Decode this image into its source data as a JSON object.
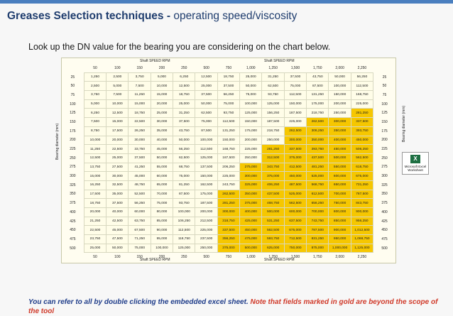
{
  "title": {
    "bold": "Greases Selection techniques -",
    "rest": " operating speed/viscosity"
  },
  "subtitle": "Look up the DN value for the bearing you are considering on the chart below.",
  "chart_data": {
    "type": "table",
    "caption": "Shaft SPEED RPM",
    "row_axis_label": "Bearing diameter (mm)",
    "speeds": [
      "50",
      "100",
      "150",
      "200",
      "250",
      "500",
      "750",
      "1,000",
      "1,250",
      "1,500",
      "1,750",
      "2,000",
      "2,250"
    ],
    "diameters": [
      "25",
      "50",
      "75",
      "100",
      "125",
      "150",
      "175",
      "200",
      "225",
      "250",
      "275",
      "300",
      "325",
      "350",
      "375",
      "400",
      "425",
      "450",
      "475",
      "500"
    ],
    "rows": [
      [
        "1,250",
        "2,500",
        "3,750",
        "5,000",
        "6,250",
        "12,500",
        "18,750",
        "25,000",
        "31,250",
        "37,500",
        "43,750",
        "50,000",
        "56,250"
      ],
      [
        "2,500",
        "5,000",
        "7,500",
        "10,000",
        "12,500",
        "25,000",
        "37,500",
        "50,000",
        "62,500",
        "75,000",
        "87,500",
        "100,000",
        "112,500"
      ],
      [
        "3,750",
        "7,500",
        "11,250",
        "15,000",
        "18,750",
        "37,500",
        "56,250",
        "75,000",
        "93,750",
        "112,500",
        "131,250",
        "150,000",
        "168,750"
      ],
      [
        "5,000",
        "10,000",
        "15,000",
        "20,000",
        "25,000",
        "50,000",
        "75,000",
        "100,000",
        "125,000",
        "150,000",
        "175,000",
        "200,000",
        "225,000"
      ],
      [
        "6,250",
        "12,500",
        "18,750",
        "25,000",
        "31,250",
        "62,500",
        "93,750",
        "125,000",
        "156,250",
        "187,500",
        "218,750",
        "250,000",
        "281,250"
      ],
      [
        "7,500",
        "15,000",
        "22,500",
        "30,000",
        "37,500",
        "75,000",
        "112,500",
        "150,000",
        "187,500",
        "225,000",
        "262,500",
        "300,000",
        "337,500"
      ],
      [
        "8,750",
        "17,500",
        "26,250",
        "35,000",
        "43,750",
        "87,500",
        "131,250",
        "175,000",
        "218,750",
        "262,500",
        "306,250",
        "350,000",
        "393,750"
      ],
      [
        "10,000",
        "20,000",
        "30,000",
        "40,000",
        "50,000",
        "100,000",
        "150,000",
        "200,000",
        "250,000",
        "300,000",
        "350,000",
        "400,000",
        "450,000"
      ],
      [
        "11,250",
        "22,500",
        "33,750",
        "45,000",
        "56,250",
        "112,500",
        "168,750",
        "225,000",
        "281,250",
        "337,500",
        "393,750",
        "450,000",
        "506,250"
      ],
      [
        "12,500",
        "25,000",
        "37,500",
        "50,000",
        "62,500",
        "125,000",
        "187,500",
        "250,000",
        "312,500",
        "375,000",
        "437,500",
        "500,000",
        "562,500"
      ],
      [
        "13,750",
        "27,500",
        "41,250",
        "55,000",
        "68,750",
        "137,500",
        "206,250",
        "275,000",
        "343,750",
        "412,500",
        "481,250",
        "550,000",
        "618,750"
      ],
      [
        "15,000",
        "30,000",
        "45,000",
        "60,000",
        "75,000",
        "150,000",
        "225,000",
        "300,000",
        "375,000",
        "450,000",
        "525,000",
        "600,000",
        "675,000"
      ],
      [
        "16,250",
        "32,500",
        "48,750",
        "65,000",
        "81,250",
        "162,500",
        "243,750",
        "325,000",
        "406,250",
        "487,500",
        "568,750",
        "650,000",
        "731,250"
      ],
      [
        "17,500",
        "35,000",
        "52,500",
        "70,000",
        "87,500",
        "175,000",
        "262,500",
        "350,000",
        "437,500",
        "525,000",
        "612,500",
        "700,000",
        "787,500"
      ],
      [
        "18,750",
        "37,500",
        "56,250",
        "75,000",
        "93,750",
        "187,500",
        "281,250",
        "375,000",
        "468,750",
        "562,500",
        "656,250",
        "750,000",
        "843,750"
      ],
      [
        "20,000",
        "40,000",
        "60,000",
        "80,000",
        "100,000",
        "200,000",
        "300,000",
        "400,000",
        "500,000",
        "600,000",
        "700,000",
        "800,000",
        "900,000"
      ],
      [
        "21,250",
        "42,500",
        "63,750",
        "85,000",
        "106,250",
        "212,500",
        "318,750",
        "425,000",
        "531,250",
        "637,500",
        "743,750",
        "850,000",
        "956,250"
      ],
      [
        "22,500",
        "45,000",
        "67,500",
        "90,000",
        "112,500",
        "225,000",
        "337,500",
        "450,000",
        "562,500",
        "675,000",
        "787,500",
        "900,000",
        "1,012,500"
      ],
      [
        "23,750",
        "47,500",
        "71,250",
        "95,000",
        "118,750",
        "237,500",
        "356,250",
        "475,000",
        "593,750",
        "712,500",
        "831,250",
        "950,000",
        "1,068,750"
      ],
      [
        "25,000",
        "50,000",
        "75,000",
        "100,000",
        "125,000",
        "250,000",
        "375,000",
        "500,000",
        "625,000",
        "750,000",
        "875,000",
        "1,000,000",
        "1,125,000"
      ]
    ],
    "gold_threshold": 260000
  },
  "embedded": {
    "label": "Microsoft Excel Worksheet",
    "logo": "X"
  },
  "footer": {
    "part1": "You can refer to all by double clicking the embedded excel sheet. ",
    "part2": "Note that fields marked in gold are beyond the scope of the tool"
  },
  "colors": {
    "gold": "#f6c700",
    "title": "#1f3d6e",
    "footer_blue": "#1f3d8a",
    "footer_red": "#d03a2a"
  }
}
